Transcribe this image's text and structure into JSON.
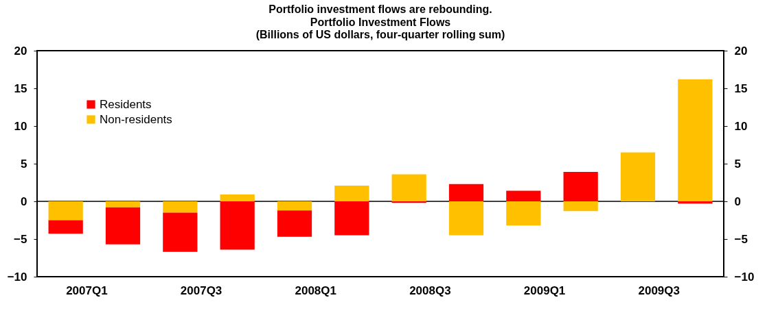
{
  "chart_data": {
    "type": "bar",
    "title": "Portfolio investment flows are rebounding.",
    "subtitle": "Portfolio Investment Flows\n(Billions of US dollars, four-quarter rolling sum)",
    "categories": [
      "2007Q1",
      null,
      "2007Q3",
      null,
      "2008Q1",
      null,
      "2008Q3",
      null,
      "2009Q1",
      null,
      "2009Q3",
      null
    ],
    "stacked": true,
    "series": [
      {
        "name": "Non-residents",
        "color": "#ffc000",
        "values": [
          -2.5,
          -0.8,
          -1.5,
          0.9,
          -1.2,
          2.1,
          3.6,
          -4.5,
          -3.2,
          -1.3,
          6.5,
          16.2
        ]
      },
      {
        "name": "Residents",
        "color": "#ff0000",
        "values": [
          -1.8,
          -4.9,
          -5.2,
          -6.4,
          -3.5,
          -4.5,
          -0.2,
          2.3,
          1.4,
          3.9,
          0.0,
          -0.3
        ]
      }
    ],
    "ylim": [
      -10,
      20
    ],
    "yticks": [
      -10,
      -5,
      0,
      5,
      10,
      15,
      20
    ],
    "y2lim": [
      -10,
      20
    ],
    "y2ticks": [
      -10,
      -5,
      0,
      5,
      10,
      15,
      20
    ],
    "legend": "top left"
  }
}
